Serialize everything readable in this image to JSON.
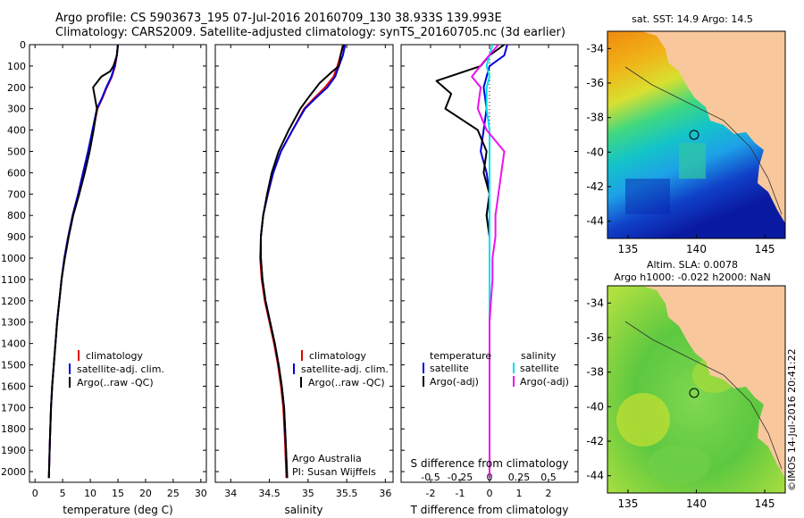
{
  "header": {
    "line1": "Argo profile: CS 5903673_195 07-Jul-2016 20160709_130 38.933S 139.993E",
    "line2": "Climatology: CARS2009. Satellite-adjusted climatology: synTS_20160705.nc (3d earlier)"
  },
  "stamp": "©IMOS 14-Jul-2016 20:41:22",
  "colors": {
    "climatology": "#e00000",
    "satellite": "#0000dd",
    "argo": "#000000",
    "sal_satellite": "#00e0e8",
    "sal_argo": "#ee10ee",
    "land": "#f8c89c"
  },
  "chart_data": [
    {
      "type": "line",
      "name": "temperature-profile",
      "xlabel": "temperature (deg C)",
      "ylim": [
        2050,
        0
      ],
      "xlim": [
        -1,
        31
      ],
      "xticks": [
        0,
        5,
        10,
        15,
        20,
        25,
        30
      ],
      "yticks": [
        0,
        100,
        200,
        300,
        400,
        500,
        600,
        700,
        800,
        900,
        1000,
        1100,
        1200,
        1300,
        1400,
        1500,
        1600,
        1700,
        1800,
        1900,
        2000
      ],
      "legend": [
        "climatology",
        "satellite-adj. clim.",
        "Argo(..raw -QC)"
      ],
      "series": [
        {
          "name": "climatology",
          "color": "#e00000",
          "x": [
            15.0,
            14.8,
            14.5,
            13.9,
            13.0,
            12.2,
            11.3,
            10.5,
            9.6,
            8.7,
            7.8,
            6.8,
            6.0,
            5.3,
            4.8,
            4.4,
            4.0,
            3.7,
            3.4,
            3.1,
            2.9,
            2.7,
            2.5
          ],
          "y": [
            0,
            50,
            100,
            150,
            200,
            250,
            300,
            400,
            500,
            600,
            700,
            800,
            900,
            1000,
            1100,
            1200,
            1300,
            1400,
            1500,
            1600,
            1700,
            1850,
            2030
          ]
        },
        {
          "name": "satellite-adj. clim.",
          "color": "#0000dd",
          "x": [
            15.0,
            14.8,
            14.4,
            13.8,
            12.9,
            12.1,
            11.2,
            10.4,
            9.6,
            8.7,
            7.8,
            6.8,
            6.0,
            5.3,
            4.8,
            4.4,
            4.0,
            3.7,
            3.4,
            3.1,
            2.9,
            2.7,
            2.5
          ],
          "y": [
            0,
            50,
            100,
            150,
            200,
            250,
            300,
            400,
            500,
            600,
            700,
            800,
            900,
            1000,
            1100,
            1200,
            1300,
            1400,
            1500,
            1600,
            1700,
            1850,
            2030
          ]
        },
        {
          "name": "Argo(..raw -QC)",
          "color": "#000000",
          "x": [
            15.0,
            14.8,
            14.2,
            13.6,
            12.0,
            10.5,
            11.2,
            10.6,
            9.9,
            9.0,
            8.0,
            6.9,
            6.1,
            5.4,
            4.8,
            4.4,
            4.0,
            3.7,
            3.4,
            3.1,
            2.9,
            2.7,
            2.5
          ],
          "y": [
            0,
            50,
            100,
            125,
            150,
            200,
            300,
            400,
            500,
            600,
            700,
            800,
            900,
            1000,
            1100,
            1200,
            1300,
            1400,
            1500,
            1600,
            1700,
            1850,
            2030
          ]
        }
      ]
    },
    {
      "type": "line",
      "name": "salinity-profile",
      "xlabel": "salinity",
      "ylim": [
        2050,
        0
      ],
      "xlim": [
        33.8,
        36.1
      ],
      "xticks": [
        34,
        34.5,
        35,
        35.5,
        36
      ],
      "legend": [
        "climatology",
        "satellite-adj. clim.",
        "Argo(..raw -QC)"
      ],
      "credits": [
        "Argo Australia",
        "PI: Susan Wijffels"
      ],
      "series": [
        {
          "name": "climatology",
          "color": "#e00000",
          "x": [
            35.45,
            35.42,
            35.38,
            35.33,
            35.22,
            35.08,
            34.95,
            34.8,
            34.65,
            34.55,
            34.48,
            34.42,
            34.39,
            34.38,
            34.4,
            34.44,
            34.5,
            34.56,
            34.61,
            34.65,
            34.68,
            34.7,
            34.72
          ],
          "y": [
            0,
            50,
            100,
            150,
            200,
            250,
            300,
            400,
            500,
            600,
            700,
            800,
            900,
            1000,
            1100,
            1200,
            1300,
            1400,
            1500,
            1600,
            1700,
            1850,
            2030
          ]
        },
        {
          "name": "satellite-adj. clim.",
          "color": "#0000dd",
          "x": [
            35.48,
            35.45,
            35.4,
            35.35,
            35.25,
            35.1,
            34.96,
            34.8,
            34.65,
            34.55,
            34.48,
            34.42,
            34.39,
            34.39,
            34.41,
            34.45,
            34.51,
            34.57,
            34.62,
            34.66,
            34.69,
            34.71,
            34.73
          ],
          "y": [
            0,
            50,
            100,
            150,
            200,
            250,
            300,
            400,
            500,
            600,
            700,
            800,
            900,
            1000,
            1100,
            1200,
            1300,
            1400,
            1500,
            1600,
            1700,
            1850,
            2030
          ]
        },
        {
          "name": "Argo(..raw -QC)",
          "color": "#000000",
          "x": [
            35.46,
            35.42,
            35.4,
            35.3,
            35.15,
            35.0,
            34.9,
            34.75,
            34.62,
            34.53,
            34.47,
            34.42,
            34.39,
            34.39,
            34.41,
            34.45,
            34.51,
            34.57,
            34.62,
            34.66,
            34.69,
            34.71,
            34.73
          ],
          "y": [
            0,
            50,
            100,
            130,
            180,
            250,
            300,
            400,
            500,
            600,
            700,
            800,
            900,
            1000,
            1100,
            1200,
            1300,
            1400,
            1500,
            1600,
            1700,
            1850,
            2030
          ]
        }
      ]
    },
    {
      "type": "line",
      "name": "difference-profile",
      "xlabel": "T difference from climatology",
      "top_label": "S difference from climatology",
      "top_ticks": [
        "-0.5",
        "-0.25",
        "0",
        "0.25",
        "0.5"
      ],
      "top_tick_values": [
        -2,
        -1,
        0,
        1,
        2
      ],
      "ylim": [
        2050,
        0
      ],
      "xlim": [
        -3,
        3
      ],
      "xticks": [
        -2,
        -1,
        0,
        1,
        2
      ],
      "legend_headers": [
        "temperature",
        "salinity"
      ],
      "legend": [
        "satellite",
        "Argo(-adj)",
        "satellite",
        "Argo(-adj)"
      ],
      "series": [
        {
          "name": "T satellite",
          "color": "#0000dd",
          "x": [
            0.6,
            0.5,
            0.0,
            -0.1,
            -0.2,
            -0.1,
            -0.2,
            -0.3,
            -0.1,
            0.0,
            -0.1,
            0.0,
            0.0,
            0.0,
            0.0,
            0.0,
            0.0,
            0.0,
            0.0,
            0.0,
            0.0
          ],
          "y": [
            0,
            50,
            100,
            150,
            200,
            300,
            400,
            500,
            600,
            700,
            800,
            900,
            1000,
            1100,
            1200,
            1300,
            1400,
            1500,
            1600,
            1800,
            2030
          ]
        },
        {
          "name": "T Argo(-adj)",
          "color": "#000000",
          "x": [
            0.5,
            0.0,
            -0.3,
            -1.8,
            -1.3,
            -1.5,
            -0.4,
            -0.1,
            -0.2,
            0.0,
            -0.1,
            0.0,
            0.0,
            0.0,
            0.0,
            0.0,
            0.0,
            0.0,
            0.0,
            0.0,
            0.0
          ],
          "y": [
            0,
            50,
            100,
            170,
            230,
            300,
            400,
            500,
            600,
            700,
            800,
            900,
            1000,
            1100,
            1200,
            1300,
            1400,
            1500,
            1600,
            1800,
            2030
          ]
        },
        {
          "name": "S satellite",
          "color": "#00e0e8",
          "x": [
            0.1,
            0.0,
            -0.1,
            0.0,
            -0.1,
            -0.1,
            0.0,
            0.0,
            0.0,
            0.0,
            0.0,
            0.0,
            0.0,
            0.0,
            0.0,
            0.0,
            0.0,
            0.0,
            0.0,
            0.0
          ],
          "y": [
            0,
            50,
            100,
            150,
            200,
            300,
            400,
            500,
            600,
            700,
            800,
            900,
            1000,
            1100,
            1200,
            1300,
            1400,
            1500,
            1600,
            2030
          ]
        },
        {
          "name": "S Argo(-adj)",
          "color": "#ee10ee",
          "x": [
            0.3,
            -0.2,
            -0.6,
            -0.3,
            -0.4,
            -0.1,
            0.5,
            0.4,
            0.3,
            0.2,
            0.2,
            0.1,
            0.1,
            0.05,
            0.0,
            0.0,
            0.0,
            0.0,
            0.0,
            0.0
          ],
          "y": [
            0,
            80,
            150,
            200,
            300,
            400,
            500,
            600,
            700,
            800,
            900,
            1000,
            1100,
            1200,
            1300,
            1400,
            1500,
            1600,
            1800,
            2030
          ]
        }
      ]
    },
    {
      "type": "heatmap",
      "name": "sst-map",
      "title": "sat. SST: 14.9 Argo: 14.5",
      "xlim": [
        133.5,
        146.5
      ],
      "ylim": [
        -45,
        -33
      ],
      "xticks": [
        135,
        140,
        145
      ],
      "yticks": [
        -34,
        -36,
        -38,
        -40,
        -42,
        -44
      ],
      "marker": [
        139.993,
        -38.933
      ]
    },
    {
      "type": "heatmap",
      "name": "sla-map",
      "title_line1": "Altim. SLA: 0.0078",
      "title_line2": "Argo h1000: -0.022 h2000: NaN",
      "xlim": [
        133.5,
        146.5
      ],
      "ylim": [
        -45,
        -33
      ],
      "xticks": [
        135,
        140,
        145
      ],
      "yticks": [
        -34,
        -36,
        -38,
        -40,
        -42,
        -44
      ],
      "marker": [
        139.993,
        -38.933
      ]
    }
  ]
}
